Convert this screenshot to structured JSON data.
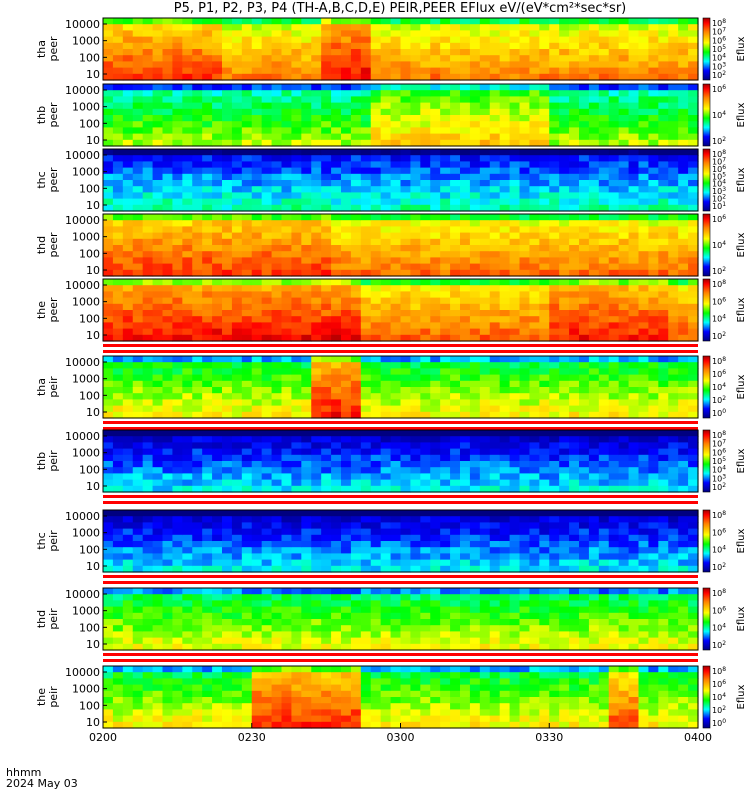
{
  "header": {
    "title": "P5, P1, P2, P3, P4 (TH-A,B,C,D,E) PEIR,PEER EFlux eV/(eV*cm²*sec*sr)"
  },
  "footer": {
    "time_label": "hhmm",
    "date_label": "2024 May 03"
  },
  "colors": {
    "stripe": "#ff0000",
    "line": "#000000"
  },
  "chart_data": {
    "type": "heatmap",
    "x_ticks": [
      "0200",
      "0230",
      "0300",
      "0330",
      "0400"
    ],
    "x_range": [
      "02:00",
      "04:00"
    ],
    "y_scale": "log",
    "colorbar_label": "Eflux",
    "panels": [
      {
        "name": "tha peer",
        "ylabel_top": "tha",
        "ylabel_bottom": "peer",
        "y_ticks": [
          "10000",
          "1000",
          "100",
          "10"
        ],
        "cbar_ticks": [
          "10^8",
          "10^7",
          "10^6",
          "10^5",
          "10^4",
          "10^3",
          "10^2"
        ],
        "base_level": 0.78,
        "segments": [
          [
            0.36,
            0.44,
            0.92
          ],
          [
            0.0,
            0.2,
            0.86
          ]
        ]
      },
      {
        "name": "thb peer",
        "ylabel_top": "thb",
        "ylabel_bottom": "peer",
        "y_ticks": [
          "10000",
          "1000",
          "100",
          "10"
        ],
        "cbar_ticks": [
          "10^6",
          "10^4",
          "10^2"
        ],
        "base_level": 0.55,
        "segments": [
          [
            0.45,
            0.75,
            0.68
          ]
        ]
      },
      {
        "name": "thc peer",
        "ylabel_top": "thc",
        "ylabel_bottom": "peer",
        "y_ticks": [
          "10000",
          "1000",
          "100",
          "10"
        ],
        "cbar_ticks": [
          "10^8",
          "10^7",
          "10^6",
          "10^5",
          "10^4",
          "10^3",
          "10^2",
          "10^1"
        ],
        "base_level": 0.35,
        "segments": []
      },
      {
        "name": "thd peer",
        "ylabel_top": "thd",
        "ylabel_bottom": "peer",
        "y_ticks": [
          "10000",
          "1000",
          "100",
          "10"
        ],
        "cbar_ticks": [
          "10^6",
          "10^4",
          "10^2"
        ],
        "base_level": 0.8,
        "segments": [
          [
            0.0,
            0.37,
            0.86
          ]
        ]
      },
      {
        "name": "the peer",
        "ylabel_top": "the",
        "ylabel_bottom": "peer",
        "y_ticks": [
          "10000",
          "1000",
          "100",
          "10"
        ],
        "cbar_ticks": [
          "10^8",
          "10^6",
          "10^4",
          "10^2"
        ],
        "base_level": 0.82,
        "segments": [
          [
            0.0,
            0.43,
            0.92
          ],
          [
            0.74,
            0.95,
            0.9
          ]
        ]
      },
      {
        "name": "tha peir",
        "ylabel_top": "tha",
        "ylabel_bottom": "peir",
        "y_ticks": [
          "10000",
          "1000",
          "100",
          "10"
        ],
        "cbar_ticks": [
          "10^8",
          "10^6",
          "10^4",
          "10^2",
          "10^0"
        ],
        "base_level": 0.62,
        "segments": [
          [
            0.34,
            0.43,
            0.9
          ]
        ]
      },
      {
        "name": "thb peir",
        "ylabel_top": "thb",
        "ylabel_bottom": "peir",
        "y_ticks": [
          "10000",
          "1000",
          "100",
          "10"
        ],
        "cbar_ticks": [
          "10^8",
          "10^7",
          "10^6",
          "10^5",
          "10^4",
          "10^3",
          "10^2"
        ],
        "base_level": 0.3,
        "segments": []
      },
      {
        "name": "thc peir",
        "ylabel_top": "thc",
        "ylabel_bottom": "peir",
        "y_ticks": [
          "10000",
          "1000",
          "100",
          "10"
        ],
        "cbar_ticks": [
          "10^8",
          "10^6",
          "10^4",
          "10^2"
        ],
        "base_level": 0.3,
        "segments": []
      },
      {
        "name": "thd peir",
        "ylabel_top": "thd",
        "ylabel_bottom": "peir",
        "y_ticks": [
          "10000",
          "1000",
          "100",
          "10"
        ],
        "cbar_ticks": [
          "10^8",
          "10^6",
          "10^4",
          "10^2"
        ],
        "base_level": 0.6,
        "segments": []
      },
      {
        "name": "the peir",
        "ylabel_top": "the",
        "ylabel_bottom": "peir",
        "y_ticks": [
          "10000",
          "1000",
          "100",
          "10"
        ],
        "cbar_ticks": [
          "10^8",
          "10^6",
          "10^4",
          "10^2",
          "10^0"
        ],
        "base_level": 0.62,
        "segments": [
          [
            0.25,
            0.43,
            0.88
          ],
          [
            0.84,
            0.9,
            0.84
          ]
        ]
      }
    ]
  }
}
